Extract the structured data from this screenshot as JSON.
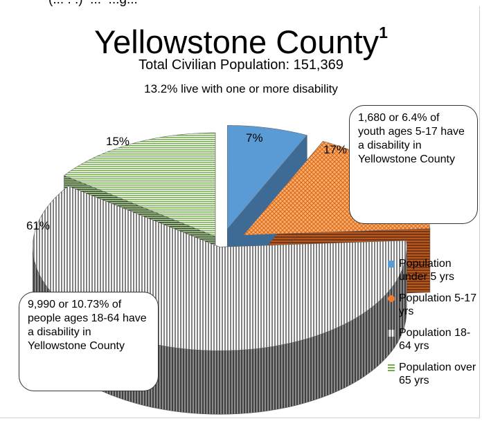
{
  "header": {
    "top_cut_text": "(... . .)  ...  ...g...",
    "title": "Yellowstone County",
    "title_footnote": "1",
    "subtitle": "Total Civilian Population: 151,369",
    "note": "13.2% live with one or more disability"
  },
  "callouts": {
    "youth": "1,680 or 6.4% of youth ages 5-17 have a disability in Yellowstone County",
    "adult": "9,990 or 10.73% of people ages 18-64 have a disability in Yellowstone County"
  },
  "chart_data": {
    "type": "pie",
    "title": "Yellowstone County",
    "style": "3d-exploded",
    "slices": [
      {
        "name": "Population under 5 yrs",
        "value": 7,
        "label": "7%",
        "color": "#5b9bd5",
        "pattern": "solid"
      },
      {
        "name": "Population 5-17 yrs",
        "value": 17,
        "label": "17%",
        "color": "#ed7d31",
        "pattern": "crosshatch"
      },
      {
        "name": "Population 18-64 yrs",
        "value": 61,
        "label": "61%",
        "color": "#7f7f7f",
        "pattern": "vertical-lines"
      },
      {
        "name": "Population over 65 yrs",
        "value": 15,
        "label": "15%",
        "color": "#70ad47",
        "pattern": "horizontal-lines"
      }
    ],
    "legend": {
      "position": "right",
      "entries": [
        "Population under 5 yrs",
        "Population 5-17 yrs",
        "Population 18-64 yrs",
        "Population over 65 yrs"
      ]
    }
  }
}
